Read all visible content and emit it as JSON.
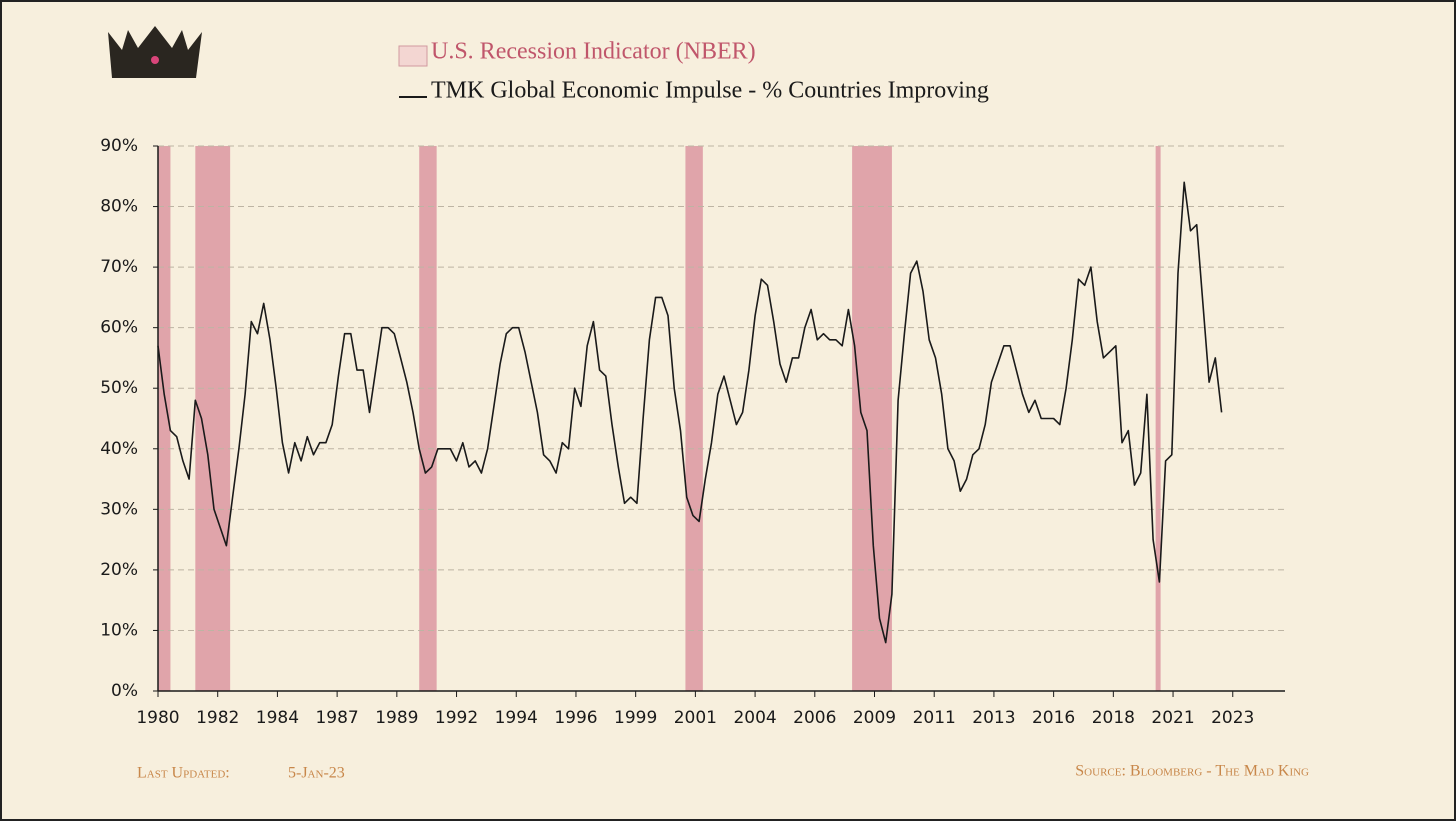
{
  "chart_data": {
    "type": "line",
    "legend_position": "top",
    "recessions": {
      "name": "U.S. Recession Indicator (NBER)",
      "color": "#e0a4aa",
      "periods": [
        [
          1980.0,
          1980.5
        ],
        [
          1981.5,
          1982.9
        ],
        [
          1990.5,
          1991.2
        ],
        [
          2001.2,
          2001.9
        ],
        [
          2007.9,
          2009.5
        ],
        [
          2020.1,
          2020.3
        ]
      ]
    },
    "x": [
      1980,
      1980.25,
      1980.5,
      1980.75,
      1981,
      1981.25,
      1981.5,
      1981.75,
      1982,
      1982.25,
      1982.5,
      1982.75,
      1983,
      1983.25,
      1983.5,
      1983.75,
      1984,
      1984.25,
      1984.5,
      1984.75,
      1985,
      1985.25,
      1985.5,
      1985.75,
      1986,
      1986.25,
      1986.5,
      1986.75,
      1987,
      1987.25,
      1987.5,
      1987.75,
      1988,
      1988.25,
      1988.5,
      1988.75,
      1989,
      1989.25,
      1989.5,
      1989.75,
      1990,
      1990.25,
      1990.5,
      1990.75,
      1991,
      1991.25,
      1991.5,
      1991.75,
      1992,
      1992.25,
      1992.5,
      1992.75,
      1993,
      1993.25,
      1993.5,
      1993.75,
      1994,
      1994.25,
      1994.5,
      1994.75,
      1995,
      1995.25,
      1995.5,
      1995.75,
      1996,
      1996.25,
      1996.5,
      1996.75,
      1997,
      1997.25,
      1997.5,
      1997.75,
      1998,
      1998.25,
      1998.5,
      1998.75,
      1999,
      1999.25,
      1999.5,
      1999.75,
      2000,
      2000.25,
      2000.5,
      2000.75,
      2001,
      2001.25,
      2001.5,
      2001.75,
      2002,
      2002.25,
      2002.5,
      2002.75,
      2003,
      2003.25,
      2003.5,
      2003.75,
      2004,
      2004.25,
      2004.5,
      2004.75,
      2005,
      2005.25,
      2005.5,
      2005.75,
      2006,
      2006.25,
      2006.5,
      2006.75,
      2007,
      2007.25,
      2007.5,
      2007.75,
      2008,
      2008.25,
      2008.5,
      2008.75,
      2009,
      2009.25,
      2009.5,
      2009.75,
      2010,
      2010.25,
      2010.5,
      2010.75,
      2011,
      2011.25,
      2011.5,
      2011.75,
      2012,
      2012.25,
      2012.5,
      2012.75,
      2013,
      2013.25,
      2013.5,
      2013.75,
      2014,
      2014.25,
      2014.5,
      2014.75,
      2015,
      2015.25,
      2015.5,
      2015.75,
      2016,
      2016.25,
      2016.5,
      2016.75,
      2017,
      2017.25,
      2017.5,
      2017.75,
      2018,
      2018.25,
      2018.5,
      2018.75,
      2019,
      2019.25,
      2019.5,
      2019.75,
      2020,
      2020.25,
      2020.5,
      2020.75,
      2021,
      2021.25,
      2021.5,
      2021.75,
      2022,
      2022.25,
      2022.5,
      2022.75
    ],
    "series": [
      {
        "name": "TMK Global Economic Impulse - % Countries Improving",
        "color": "#1a1a1a",
        "values": [
          57,
          49,
          43,
          42,
          38,
          35,
          48,
          45,
          39,
          30,
          27,
          24,
          32,
          40,
          49,
          61,
          59,
          64,
          58,
          50,
          41,
          36,
          41,
          38,
          42,
          39,
          41,
          41,
          44,
          52,
          59,
          59,
          53,
          53,
          46,
          53,
          60,
          60,
          59,
          55,
          51,
          46,
          40,
          36,
          37,
          40,
          40,
          40,
          38,
          41,
          37,
          38,
          36,
          40,
          47,
          54,
          59,
          60,
          60,
          56,
          51,
          46,
          39,
          38,
          36,
          41,
          40,
          50,
          47,
          57,
          61,
          53,
          52,
          44,
          37,
          31,
          32,
          31,
          45,
          58,
          65,
          65,
          62,
          50,
          43,
          32,
          29,
          28,
          35,
          41,
          49,
          52,
          48,
          44,
          46,
          53,
          62,
          68,
          67,
          61,
          54,
          51,
          55,
          55,
          60,
          63,
          58,
          59,
          58,
          58,
          57,
          63,
          57,
          46,
          43,
          24,
          12,
          8,
          16,
          48,
          59,
          69,
          71,
          66,
          58,
          55,
          49,
          40,
          38,
          33,
          35,
          39,
          40,
          44,
          51,
          54,
          57,
          57,
          53,
          49,
          46,
          48,
          45,
          45,
          45,
          44,
          50,
          58,
          68,
          67,
          70,
          61,
          55,
          56,
          57,
          41,
          43,
          34,
          36,
          49,
          25,
          18,
          38,
          39,
          69,
          84,
          76,
          77,
          64,
          51,
          55,
          46
        ]
      }
    ],
    "xlim": [
      1980,
      2025.3
    ],
    "xticks": [
      {
        "value": 1980,
        "label": "1980"
      },
      {
        "value": 1982.4,
        "label": "1982"
      },
      {
        "value": 1984.8,
        "label": "1984"
      },
      {
        "value": 1987.2,
        "label": "1987"
      },
      {
        "value": 1989.6,
        "label": "1989"
      },
      {
        "value": 1992,
        "label": "1992"
      },
      {
        "value": 1994.4,
        "label": "1994"
      },
      {
        "value": 1996.8,
        "label": "1996"
      },
      {
        "value": 1999.2,
        "label": "1999"
      },
      {
        "value": 2001.6,
        "label": "2001"
      },
      {
        "value": 2004,
        "label": "2004"
      },
      {
        "value": 2006.4,
        "label": "2006"
      },
      {
        "value": 2008.8,
        "label": "2009"
      },
      {
        "value": 2011.2,
        "label": "2011"
      },
      {
        "value": 2013.6,
        "label": "2013"
      },
      {
        "value": 2016,
        "label": "2016"
      },
      {
        "value": 2018.4,
        "label": "2018"
      },
      {
        "value": 2020.8,
        "label": "2021"
      },
      {
        "value": 2023.2,
        "label": "2023"
      }
    ],
    "ylim": [
      0,
      90
    ],
    "yticks": [
      {
        "value": 0,
        "label": "0%"
      },
      {
        "value": 10,
        "label": "10%"
      },
      {
        "value": 20,
        "label": "20%"
      },
      {
        "value": 30,
        "label": "30%"
      },
      {
        "value": 40,
        "label": "40%"
      },
      {
        "value": 50,
        "label": "50%"
      },
      {
        "value": 60,
        "label": "60%"
      },
      {
        "value": 70,
        "label": "70%"
      },
      {
        "value": 80,
        "label": "80%"
      },
      {
        "value": 90,
        "label": "90%"
      }
    ],
    "grid": true,
    "footer": {
      "updated_label": "Last Updated:",
      "updated_date": "5-Jan-23",
      "source": "Source: Bloomberg - The Mad King"
    }
  }
}
